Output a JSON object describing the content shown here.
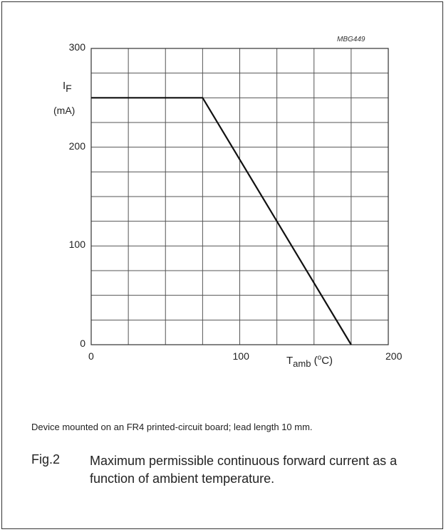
{
  "chart_data": {
    "type": "line",
    "series": [
      {
        "x": [
          0,
          75,
          175
        ],
        "y": [
          250,
          250,
          0
        ]
      }
    ],
    "xlim": [
      0,
      200
    ],
    "ylim": [
      0,
      300
    ],
    "x_ticks": [
      "0",
      "100",
      "200"
    ],
    "y_ticks": [
      "0",
      "100",
      "200",
      "300"
    ],
    "ylabel": {
      "symbol": "I",
      "subscript": "F",
      "unit": "(mA)"
    },
    "xlabel": {
      "symbol": "T",
      "subscript": "amb",
      "unit_open": " (",
      "unit_sup": "o",
      "unit_rest": "C)"
    },
    "grid": true,
    "x_grid_step": 25,
    "y_grid_step": 25,
    "code": "MBG449"
  },
  "note": "Device mounted on an FR4 printed-circuit board; lead length 10 mm.",
  "figure": {
    "number": "Fig.2",
    "caption": "Maximum permissible continuous forward current as a function of ambient temperature."
  }
}
